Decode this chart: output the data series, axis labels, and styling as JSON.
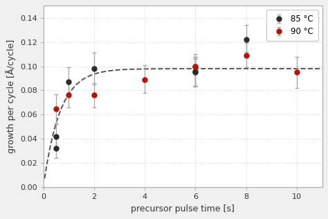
{
  "x85": [
    0.5,
    0.5,
    1.0,
    2.0,
    6.0,
    6.0,
    8.0
  ],
  "y85": [
    0.042,
    0.032,
    0.087,
    0.098,
    0.096,
    0.095,
    0.122
  ],
  "yerr85_lo": [
    0.01,
    0.008,
    0.012,
    0.013,
    0.012,
    0.012,
    0.01
  ],
  "yerr85_hi": [
    0.01,
    0.008,
    0.012,
    0.013,
    0.012,
    0.012,
    0.012
  ],
  "x90": [
    0.5,
    1.0,
    2.0,
    4.0,
    6.0,
    6.0,
    8.0,
    10.0
  ],
  "y90": [
    0.065,
    0.076,
    0.076,
    0.089,
    0.1,
    0.1,
    0.109,
    0.095
  ],
  "yerr90_lo": [
    0.012,
    0.01,
    0.01,
    0.011,
    0.016,
    0.016,
    0.01,
    0.013
  ],
  "yerr90_hi": [
    0.012,
    0.01,
    0.01,
    0.012,
    0.006,
    0.01,
    0.01,
    0.013
  ],
  "fit_A": 0.098,
  "fit_tau": 0.65,
  "color85": "#2b2b2b",
  "color90": "#bb1100",
  "ecolor": "#aaaaaa",
  "fit_color": "#555555",
  "xlabel": "precursor pulse time [s]",
  "ylabel": "growth per cycle [Å/cycle]",
  "legend_labels": [
    "85 °C",
    "90 °C"
  ],
  "xlim": [
    0,
    11
  ],
  "ylim": [
    0.0,
    0.15
  ],
  "xticks": [
    0,
    2,
    4,
    6,
    8,
    10
  ],
  "yticks": [
    0.0,
    0.02,
    0.04,
    0.06,
    0.08,
    0.1,
    0.12,
    0.14
  ],
  "fig_bgcolor": "#f0f0f0",
  "ax_bgcolor": "#ffffff",
  "figsize": [
    4.74,
    3.16
  ],
  "dpi": 100
}
